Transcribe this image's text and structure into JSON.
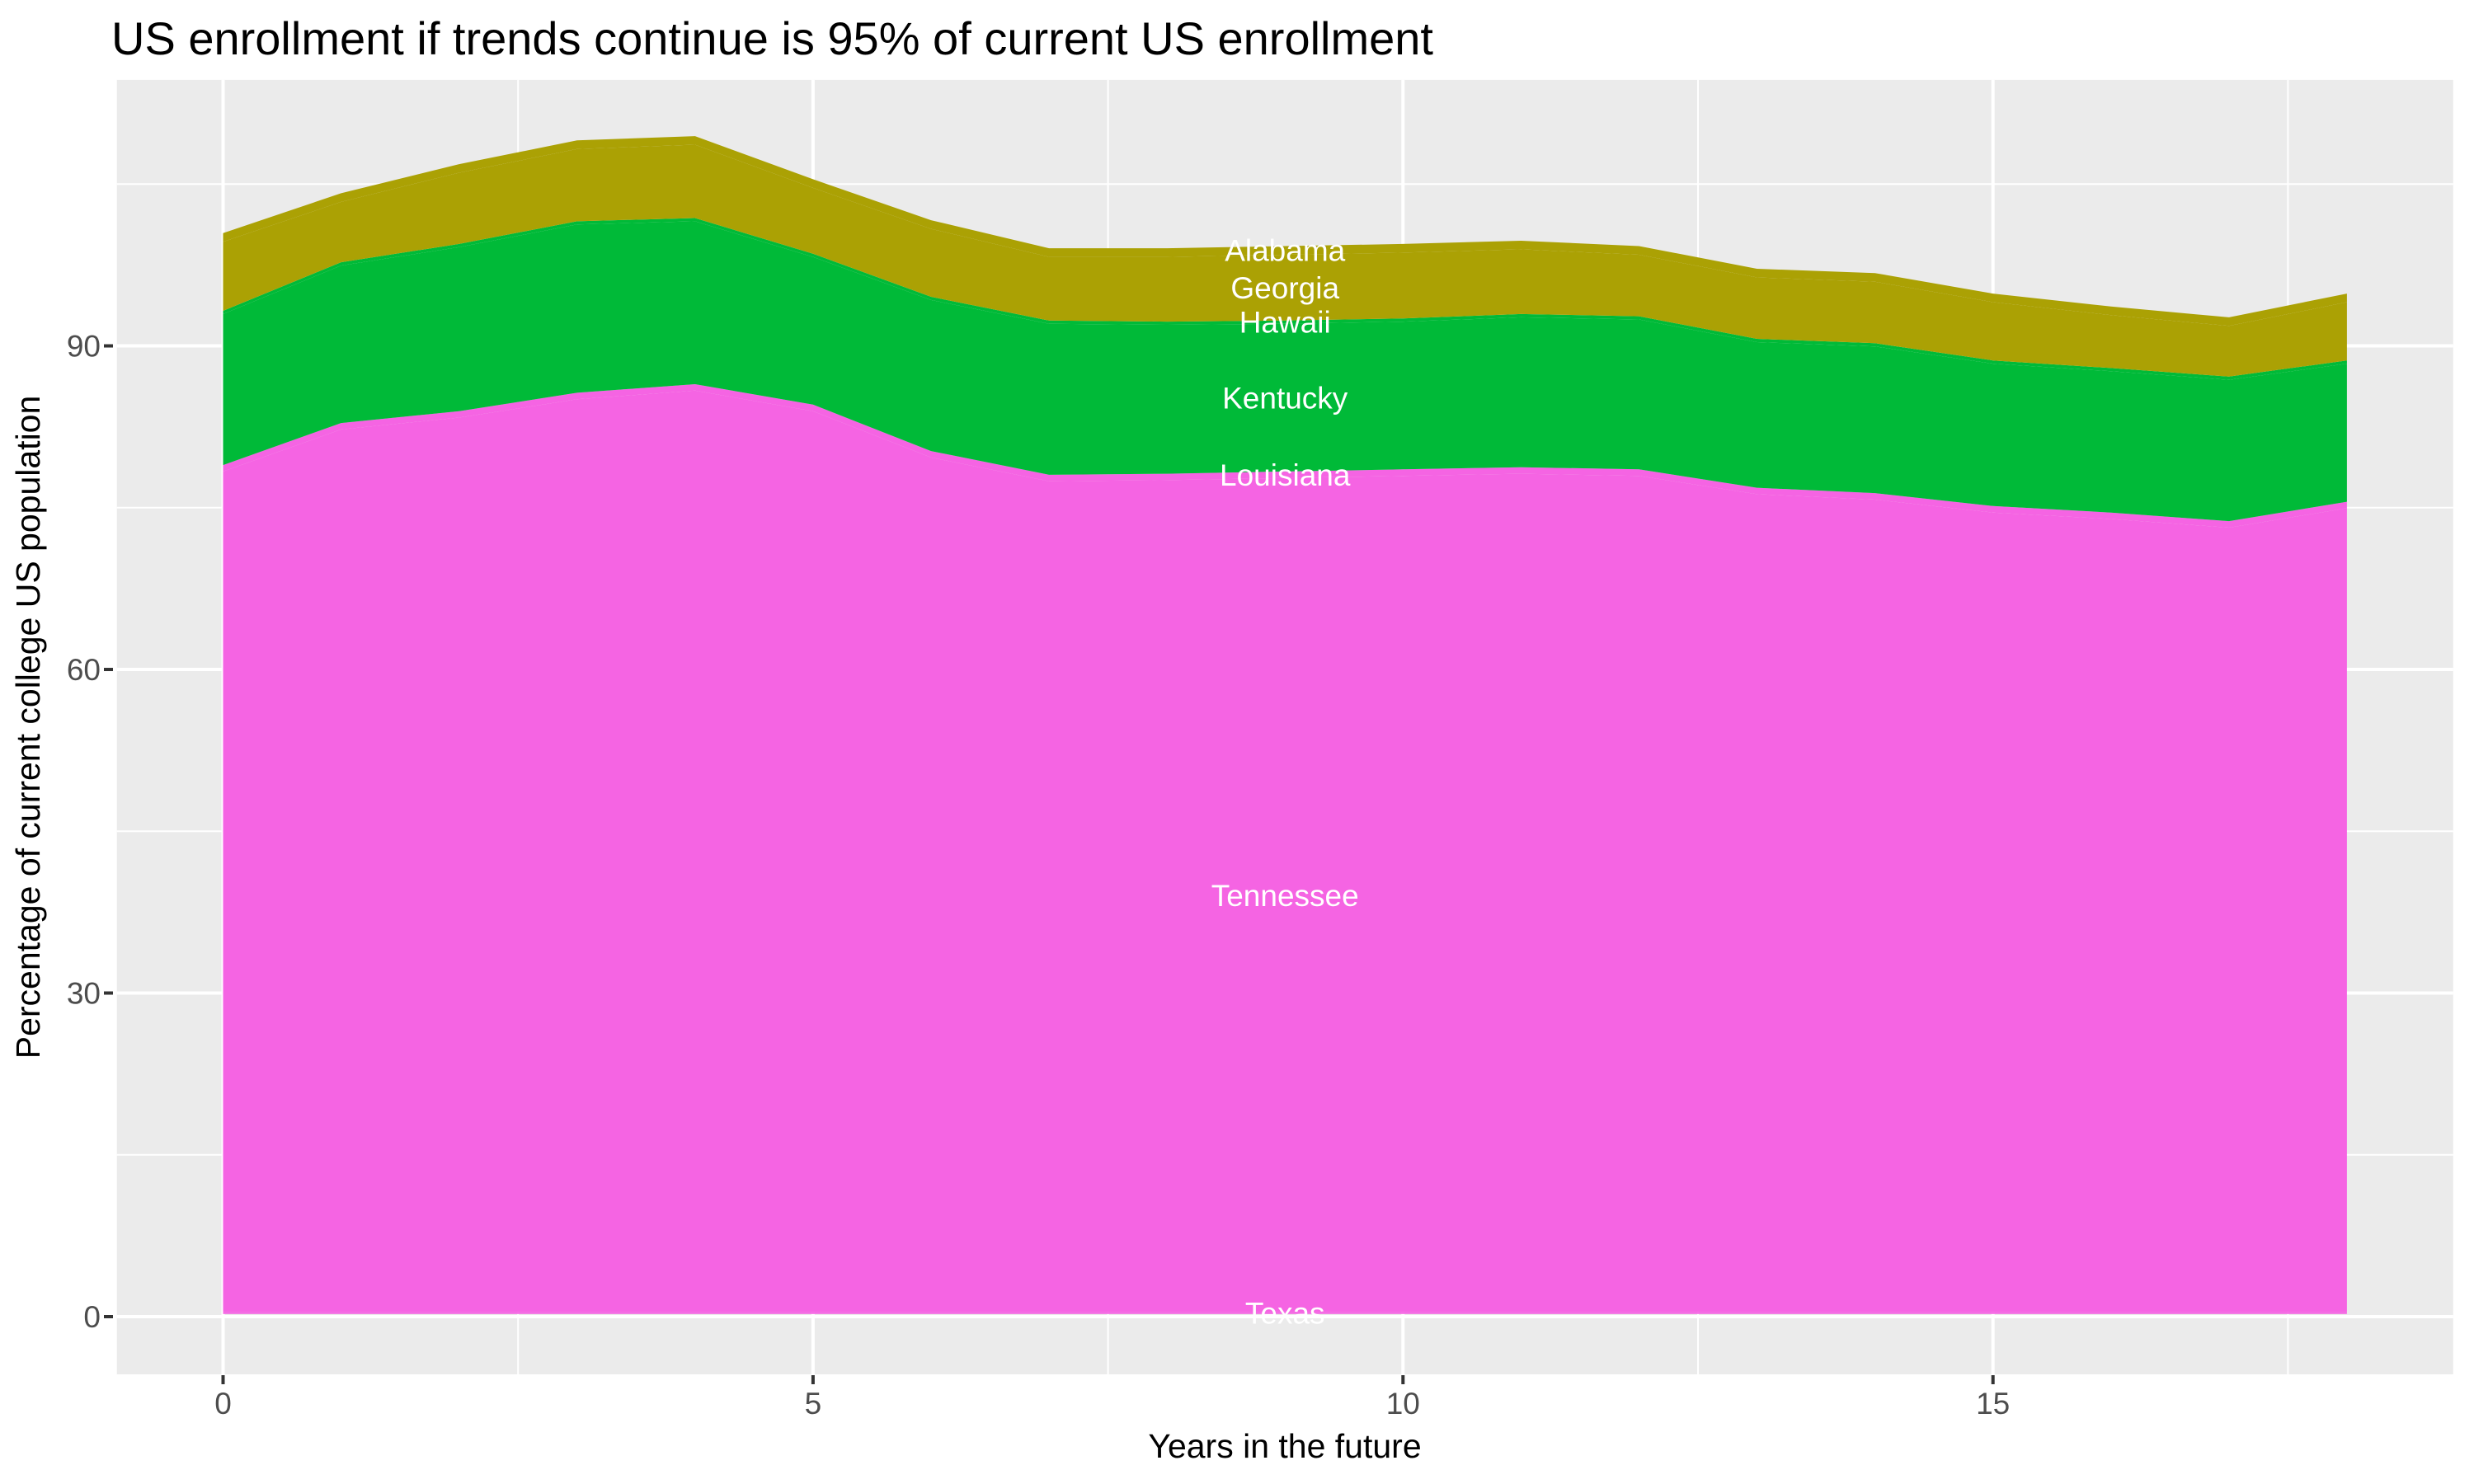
{
  "title": "US enrollment if trends continue is 95% of current US enrollment",
  "axes": {
    "x_label": "Years in the future",
    "y_label": "Percentage of current college US population",
    "x_major_ticks": [
      0,
      5,
      10,
      15
    ],
    "x_minor_ticks": [
      2.5,
      7.5,
      12.5,
      17.5
    ],
    "y_major_ticks": [
      0,
      30,
      60,
      90
    ],
    "y_minor_ticks": [
      15,
      45,
      75,
      105
    ]
  },
  "panel": {
    "background_color": "#EBEBEB",
    "gridline_color": "#FFFFFF",
    "tick_mark_color": "#333333",
    "tick_label_color": "#4D4D4D",
    "outer_background": "#FFFFFF"
  },
  "chart_data": {
    "type": "area",
    "stacked": true,
    "title": "US enrollment if trends continue is 95% of current US enrollment",
    "xlabel": "Years in the future",
    "ylabel": "Percentage of current college US population",
    "x": [
      0,
      1,
      2,
      3,
      4,
      5,
      6,
      7,
      8,
      9,
      10,
      11,
      12,
      13,
      14,
      15,
      16,
      17,
      18
    ],
    "x_domain": [
      -0.9,
      18.9
    ],
    "y_domain": [
      -5.35,
      114.66
    ],
    "baseline": 0.25,
    "label_x": 9,
    "label_color": "#FFFFFF",
    "grid": true,
    "legend": "none (white in-plot state labels at x=9)",
    "series": [
      {
        "name": "Texas",
        "color": "#F564E3",
        "values": [
          0.15,
          0.15,
          0.15,
          0.15,
          0.15,
          0.15,
          0.15,
          0.15,
          0.15,
          0.15,
          0.15,
          0.15,
          0.15,
          0.15,
          0.15,
          0.15,
          0.15,
          0.15,
          0.15
        ]
      },
      {
        "name": "Tennessee",
        "color": "#F564E3",
        "values": [
          77.95,
          81.85,
          82.95,
          84.65,
          85.45,
          83.55,
          79.25,
          77.05,
          77.15,
          77.35,
          77.55,
          77.75,
          77.55,
          75.85,
          75.35,
          74.15,
          73.55,
          72.75,
          74.55
        ]
      },
      {
        "name": "Louisiana",
        "color": "#F564E3",
        "values": [
          0.6,
          0.6,
          0.6,
          0.6,
          0.6,
          0.6,
          0.6,
          0.6,
          0.6,
          0.6,
          0.6,
          0.6,
          0.6,
          0.6,
          0.6,
          0.6,
          0.6,
          0.6,
          0.6
        ]
      },
      {
        "name": "Kentucky",
        "color": "#00BA38",
        "values": [
          14.0,
          14.6,
          15.2,
          15.6,
          15.1,
          13.7,
          14.0,
          14.0,
          13.8,
          13.7,
          13.7,
          13.9,
          13.9,
          13.5,
          13.6,
          13.2,
          13.1,
          13.1,
          12.8
        ]
      },
      {
        "name": "Hawaii",
        "color": "#00BA38",
        "values": [
          0.3,
          0.3,
          0.3,
          0.3,
          0.3,
          0.3,
          0.3,
          0.3,
          0.3,
          0.3,
          0.3,
          0.3,
          0.3,
          0.3,
          0.3,
          0.3,
          0.3,
          0.3,
          0.3
        ]
      },
      {
        "name": "Georgia",
        "color": "#ABA104",
        "values": [
          6.4,
          5.6,
          6.6,
          6.7,
          6.8,
          6.1,
          6.3,
          5.9,
          6.0,
          6.1,
          6.1,
          6.0,
          5.7,
          5.7,
          5.7,
          5.4,
          4.9,
          4.7,
          5.4
        ]
      },
      {
        "name": "Alabama",
        "color": "#ABA104",
        "values": [
          0.8,
          0.8,
          0.8,
          0.8,
          0.8,
          0.8,
          0.8,
          0.8,
          0.8,
          0.8,
          0.8,
          0.8,
          0.8,
          0.8,
          0.8,
          0.8,
          0.8,
          0.8,
          0.8
        ]
      }
    ],
    "stack_totals": [
      100.2,
      103.9,
      106.6,
      108.8,
      109.2,
      105.2,
      101.4,
      98.8,
      98.8,
      99.0,
      99.2,
      99.5,
      99.0,
      96.9,
      96.5,
      94.6,
      93.4,
      92.4,
      94.6
    ]
  }
}
